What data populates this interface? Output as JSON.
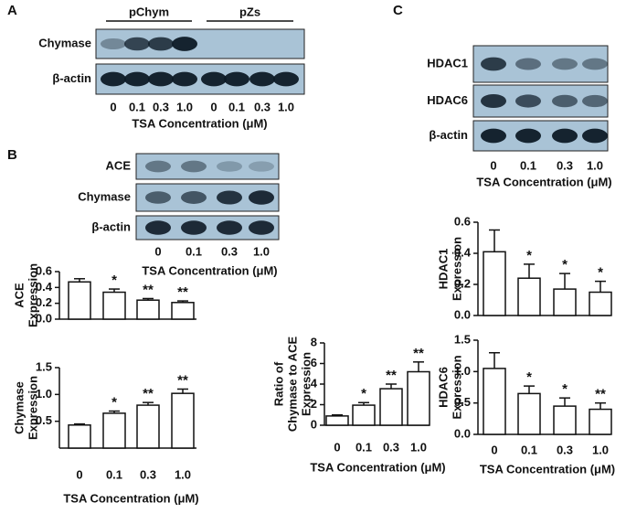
{
  "panels": [
    {
      "label": "A",
      "groups": [
        "pChym",
        "pZs"
      ],
      "rows": [
        "Chymase",
        "β-actin"
      ],
      "lanes": [
        "0",
        "0.1",
        "0.3",
        "1.0",
        "0",
        "0.1",
        "0.3",
        "1.0"
      ],
      "x_label": "TSA Concentration (μM)"
    },
    {
      "label": "B",
      "rows": [
        "ACE",
        "Chymase",
        "β-actin"
      ],
      "lanes": [
        "0",
        "0.1",
        "0.3",
        "1.0"
      ],
      "x_label": "TSA Concentration (μM)"
    },
    {
      "label": "C",
      "rows": [
        "HDAC1",
        "HDAC6",
        "β-actin"
      ],
      "lanes": [
        "0",
        "0.1",
        "0.3",
        "1.0"
      ],
      "x_label": "TSA Concentration (μM)"
    }
  ],
  "chart_data": [
    {
      "type": "bar",
      "y_label": [
        "ACE",
        "Expression"
      ],
      "values": [
        0.47,
        0.34,
        0.24,
        0.21
      ],
      "errors": [
        0.04,
        0.04,
        0.02,
        0.02
      ],
      "significance": [
        null,
        "*",
        "**",
        "**"
      ],
      "color": "#ffffff",
      "ylim": [
        0,
        0.6
      ],
      "yticks": [
        {
          "value": 0,
          "label": "0.0"
        },
        0.2,
        0.4,
        0.6
      ]
    },
    {
      "type": "bar",
      "y_label": [
        "Chymase",
        "Expression"
      ],
      "categories": [
        "0",
        "0.1",
        "0.3",
        "1.0"
      ],
      "x_label": "TSA Concentration (μM)",
      "values": [
        0.43,
        0.65,
        0.8,
        1.02
      ],
      "errors": [
        0.02,
        0.04,
        0.05,
        0.08
      ],
      "significance": [
        null,
        "*",
        "**",
        "**"
      ],
      "color": "#ffffff",
      "ylim": [
        0,
        1.5
      ],
      "yticks": [
        0.5,
        {
          "value": 1,
          "label": "1.0"
        },
        1.5
      ]
    },
    {
      "type": "bar",
      "y_label": [
        "Ratio of",
        "Chymase to ACE",
        "Expression"
      ],
      "categories": [
        "0",
        "0.1",
        "0.3",
        "1.0"
      ],
      "x_label": "TSA Concentration (μM)",
      "values": [
        0.9,
        1.95,
        3.55,
        5.2
      ],
      "errors": [
        0.1,
        0.25,
        0.45,
        0.95
      ],
      "significance": [
        null,
        "*",
        "**",
        "**"
      ],
      "color": "#ffffff",
      "ylim": [
        0,
        8
      ],
      "yticks": [
        0,
        2,
        4,
        6,
        8
      ]
    },
    {
      "type": "bar",
      "y_label": [
        "HDAC1",
        "Expression"
      ],
      "values": [
        0.41,
        0.24,
        0.17,
        0.15
      ],
      "errors": [
        0.14,
        0.09,
        0.1,
        0.07
      ],
      "significance": [
        null,
        "*",
        "*",
        "*"
      ],
      "color": "#ffffff",
      "ylim": [
        0,
        0.6
      ],
      "yticks": [
        {
          "value": 0,
          "label": "0.0"
        },
        0.2,
        0.4,
        0.6
      ]
    },
    {
      "type": "bar",
      "y_label": [
        "HDAC6",
        "Expression"
      ],
      "categories": [
        "0",
        "0.1",
        "0.3",
        "1.0"
      ],
      "x_label": "TSA Concentration (μM)",
      "values": [
        1.05,
        0.65,
        0.45,
        0.4
      ],
      "errors": [
        0.25,
        0.12,
        0.13,
        0.1
      ],
      "significance": [
        null,
        "*",
        "*",
        "**"
      ],
      "color": "#ffffff",
      "ylim": [
        0,
        1.5
      ],
      "yticks": [
        {
          "value": 0,
          "label": "0.0"
        },
        0.5,
        {
          "value": 1,
          "label": "1.0"
        },
        1.5
      ]
    }
  ]
}
